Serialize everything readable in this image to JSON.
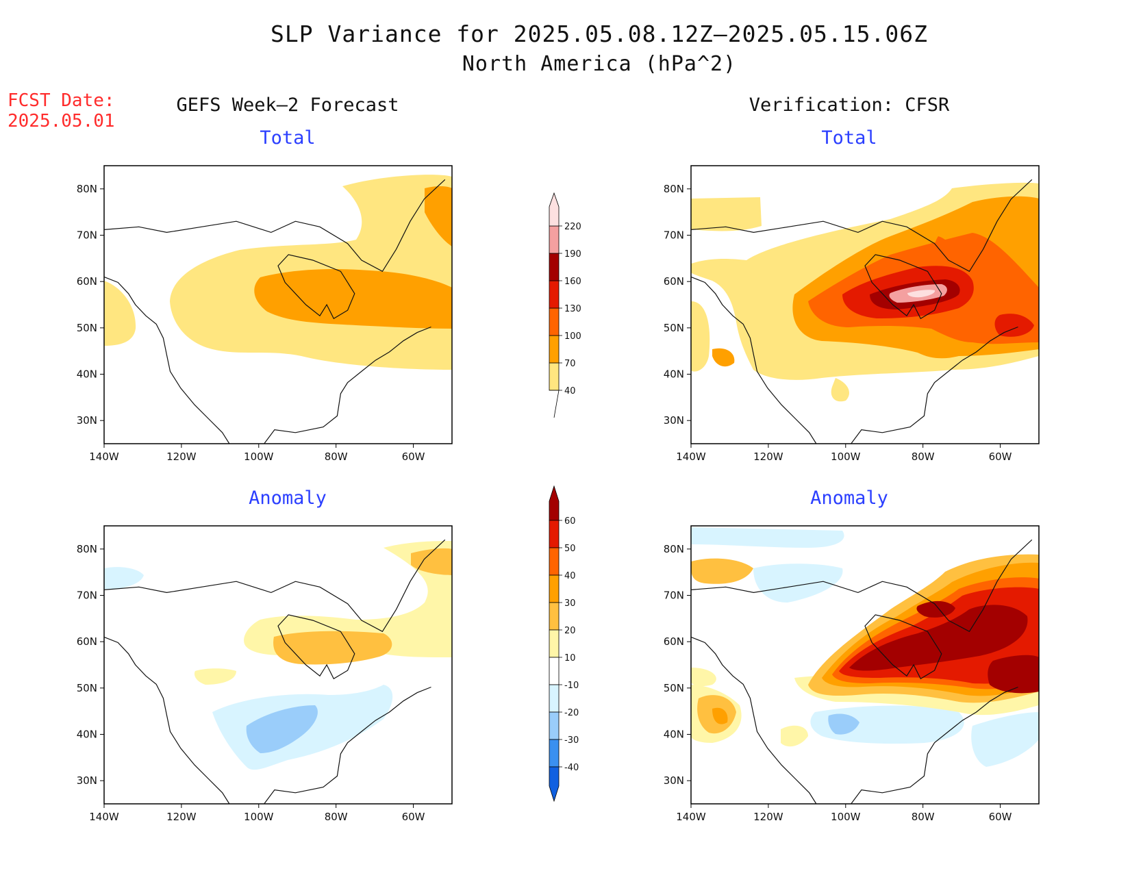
{
  "title_line1": "SLP Variance for 2025.05.08.12Z–2025.05.15.06Z",
  "title_line2": "North America (hPa^2)",
  "fcst_label": "FCST Date:",
  "fcst_date": "2025.05.01",
  "columns": {
    "left": "GEFS Week–2 Forecast",
    "right": "Verification: CFSR"
  },
  "panels": {
    "top_left": "Total",
    "top_right": "Total",
    "bottom_left": "Anomaly",
    "bottom_right": "Anomaly"
  },
  "axes": {
    "lat_labels": [
      "80N",
      "70N",
      "60N",
      "50N",
      "40N",
      "30N"
    ],
    "lat_values": [
      80,
      70,
      60,
      50,
      40,
      30
    ],
    "lon_labels": [
      "140W",
      "120W",
      "100W",
      "80W",
      "60W"
    ],
    "lon_values": [
      -140,
      -120,
      -100,
      -80,
      -60
    ],
    "lat_range": [
      25,
      85
    ],
    "lon_range": [
      -140,
      -50
    ]
  },
  "colorbar_total": {
    "labels": [
      "40",
      "70",
      "100",
      "130",
      "160",
      "190",
      "220"
    ],
    "colors": [
      "#ffe680",
      "#ffa000",
      "#ff6400",
      "#e41a00",
      "#a30000",
      "#f4a0a0",
      "#fde0e0"
    ]
  },
  "colorbar_anomaly": {
    "labels": [
      "-40",
      "-30",
      "-20",
      "-10",
      "10",
      "20",
      "30",
      "40",
      "50",
      "60"
    ],
    "colors": [
      "#1060e0",
      "#3a90f0",
      "#9acdfa",
      "#d8f4ff",
      "#ffffff",
      "#fff6a8",
      "#ffc040",
      "#ffa000",
      "#ff6400",
      "#e41a00",
      "#a30000"
    ]
  }
}
